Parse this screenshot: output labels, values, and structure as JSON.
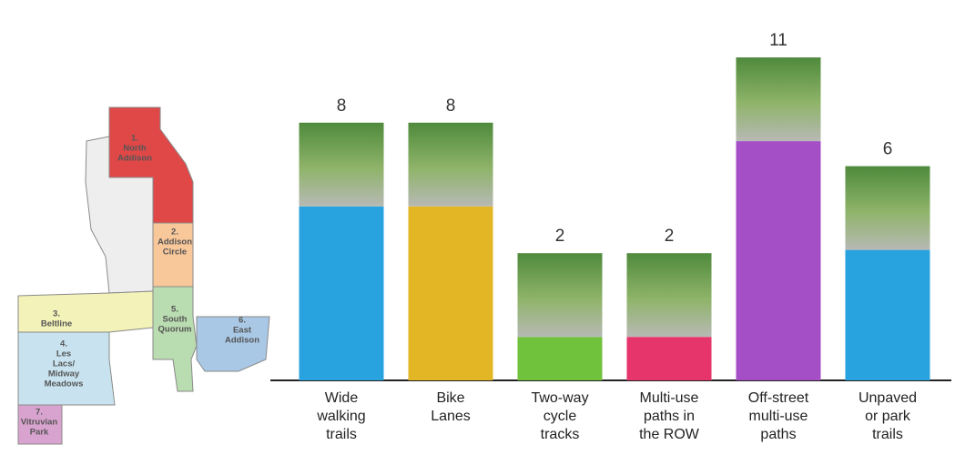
{
  "chart_data": {
    "type": "bar",
    "categories": [
      [
        "Wide",
        "walking",
        "trails"
      ],
      [
        "Bike",
        "Lanes"
      ],
      [
        "Two-way",
        "cycle",
        "tracks"
      ],
      [
        "Multi-use",
        "paths in",
        "the ROW"
      ],
      [
        "Off-street",
        "multi-use",
        "paths"
      ],
      [
        "Unpaved",
        "or park",
        "trails"
      ]
    ],
    "values": [
      8,
      8,
      2,
      2,
      11,
      6
    ],
    "colors": [
      "#29a3df",
      "#e2b624",
      "#70c13b",
      "#e6356b",
      "#a54fc6",
      "#29a3df"
    ]
  },
  "map": {
    "areas": [
      {
        "label": [
          "1.",
          "North",
          "Addison"
        ]
      },
      {
        "label": [
          "2.",
          "Addison",
          "Circle"
        ]
      },
      {
        "label": [
          "3.",
          "Beltline"
        ]
      },
      {
        "label": [
          "4.",
          "Les",
          "Lacs/",
          "Midway",
          "Meadows"
        ]
      },
      {
        "label": [
          "5.",
          "South",
          "Quorum"
        ]
      },
      {
        "label": [
          "6.",
          "East",
          "Addison"
        ]
      },
      {
        "label": [
          "7.",
          "Vitruvian",
          "Park"
        ]
      }
    ]
  }
}
